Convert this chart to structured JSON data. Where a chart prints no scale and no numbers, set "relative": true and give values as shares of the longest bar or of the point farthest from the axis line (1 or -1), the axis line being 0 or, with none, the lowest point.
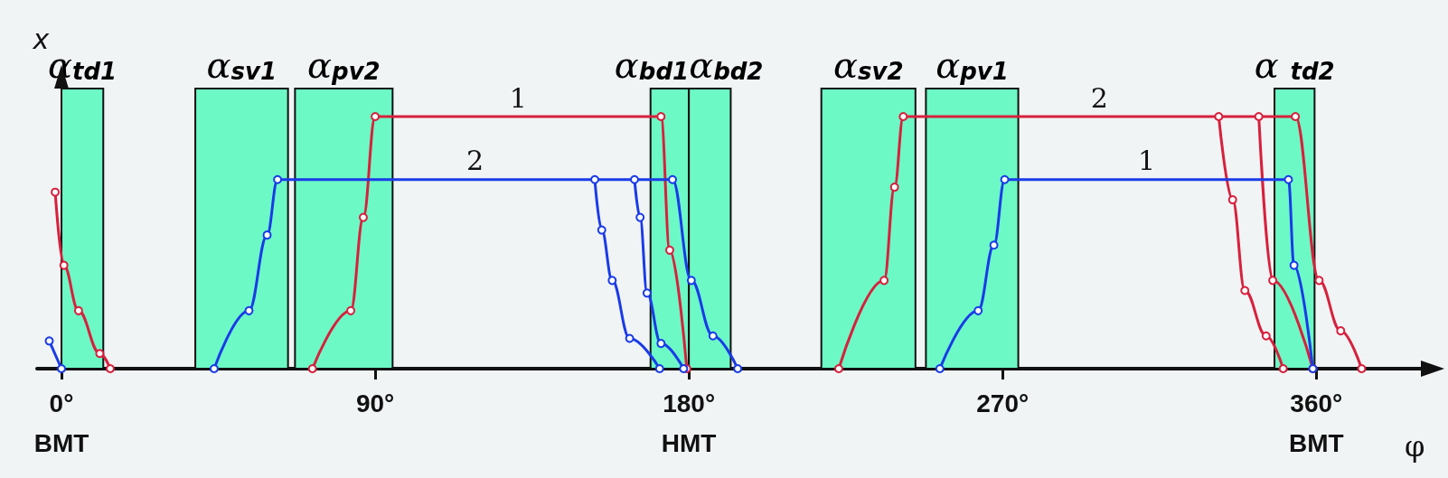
{
  "chart_data": {
    "type": "line",
    "relative": true,
    "xlabel": "φ",
    "ylabel": "x",
    "xlim": [
      -7,
      390
    ],
    "xticks": [
      {
        "value": 0,
        "label": "0°\nBMT"
      },
      {
        "value": 90,
        "label": "90°"
      },
      {
        "value": 180,
        "label": "180°\nHMT"
      },
      {
        "value": 270,
        "label": "270°"
      },
      {
        "value": 360,
        "label": "360°\nBMT"
      }
    ],
    "marker": "circle",
    "grid": false,
    "series": [
      {
        "color": "#d8203c",
        "x": [
          -1.8,
          0.7,
          4.9,
          11,
          14
        ],
        "values": [
          0.7,
          0.41,
          0.23,
          0.06,
          0
        ]
      },
      {
        "color": "#1a3be8",
        "x": [
          -3.5,
          0
        ],
        "values": [
          0.11,
          0
        ]
      },
      {
        "name": "1",
        "color": "#d8203c",
        "x": [
          72,
          83,
          86.6,
          90,
          172,
          174.5,
          179.4
        ],
        "values": [
          0,
          0.23,
          0.6,
          1,
          1,
          0.47,
          0
        ]
      },
      {
        "name": "2",
        "color": "#1a3be8",
        "x": [
          43.8,
          53.8,
          59,
          62,
          175.3,
          180.7,
          186.9,
          194
        ],
        "values": [
          0,
          0.23,
          0.53,
          0.75,
          0.75,
          0.35,
          0.13,
          0
        ]
      },
      {
        "color": "#1a3be8",
        "x": [
          153,
          155,
          158,
          163,
          171.6
        ],
        "values": [
          0.75,
          0.55,
          0.35,
          0.12,
          0
        ]
      },
      {
        "color": "#1a3be8",
        "x": [
          164.4,
          166,
          168,
          172,
          178.5
        ],
        "values": [
          0.75,
          0.6,
          0.3,
          0.1,
          0
        ]
      },
      {
        "name": "2",
        "color": "#d8203c",
        "x": [
          223,
          236,
          239,
          241.5,
          354,
          360.8,
          367,
          373
        ],
        "values": [
          0,
          0.35,
          0.72,
          1,
          1,
          0.35,
          0.15,
          0
        ]
      },
      {
        "color": "#d8203c",
        "x": [
          332,
          336,
          339.5,
          345.6,
          350.5
        ],
        "values": [
          1,
          0.67,
          0.31,
          0.13,
          0
        ]
      },
      {
        "color": "#d8203c",
        "x": [
          343.5,
          347.5,
          359
        ],
        "values": [
          1,
          0.35,
          0
        ]
      },
      {
        "name": "1",
        "color": "#1a3be8",
        "x": [
          252,
          263,
          267.5,
          270.6,
          352,
          353.6,
          359
        ],
        "values": [
          0,
          0.23,
          0.49,
          0.75,
          0.75,
          0.41,
          0
        ]
      }
    ],
    "bands": [
      {
        "axis": "x",
        "from": 0,
        "to": 12,
        "label": "α$_{td1}$",
        "color": "#6cf9c6"
      },
      {
        "axis": "x",
        "from": 38.4,
        "to": 65,
        "label": "α$_{sv1}$",
        "color": "#6cf9c6"
      },
      {
        "axis": "x",
        "from": 67,
        "to": 95,
        "label": "α$_{pv2}$",
        "color": "#6cf9c6"
      },
      {
        "axis": "x",
        "from": 169,
        "to": 180,
        "label": "α$_{bd1}$",
        "color": "#6cf9c6"
      },
      {
        "axis": "x",
        "from": 180,
        "to": 192,
        "label": "α$_{bd2}$",
        "color": "#6cf9c6"
      },
      {
        "axis": "x",
        "from": 218,
        "to": 245,
        "label": "α$_{sv2}$",
        "color": "#6cf9c6"
      },
      {
        "axis": "x",
        "from": 248,
        "to": 274.5,
        "label": "α$_{pv1}$",
        "color": "#6cf9c6"
      },
      {
        "axis": "x",
        "from": 348,
        "to": 359.5,
        "label": "α $_{td2}$",
        "color": "#6cf9c6"
      }
    ]
  }
}
